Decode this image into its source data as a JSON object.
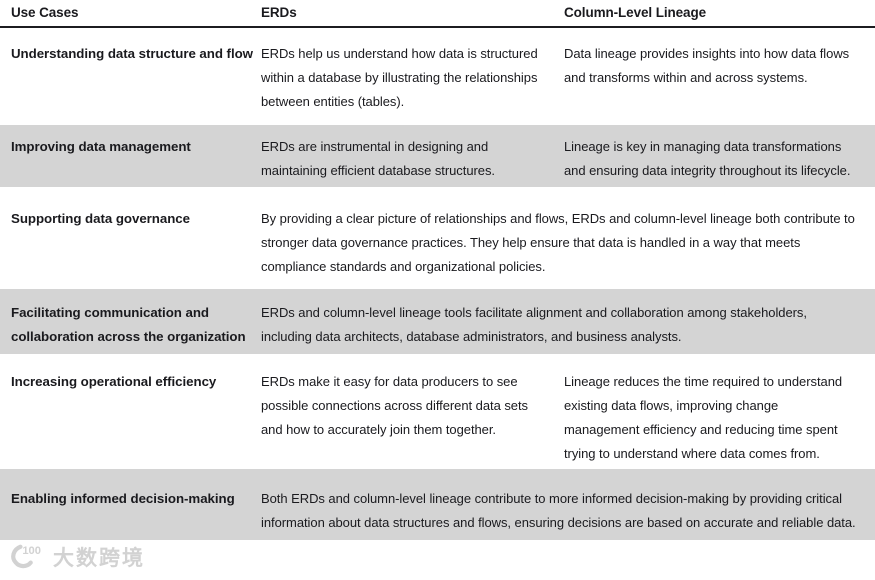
{
  "table": {
    "columns": [
      {
        "label": "Use Cases"
      },
      {
        "label": "ERDs"
      },
      {
        "label": "Column-Level Lineage"
      }
    ],
    "rows": [
      {
        "use_case": "Understanding data structure and flow",
        "erd": "ERDs help us understand how data is structured within a database by illustrating the relationships between entities (tables).",
        "lineage": "Data lineage provides insights into how data flows and transforms within and across systems.",
        "shaded": false,
        "span": false
      },
      {
        "use_case": "Improving data management",
        "erd": "ERDs are instrumental in designing and maintaining efficient database structures.",
        "lineage": "Lineage is key in managing data transformations and ensuring data integrity throughout its lifecycle.",
        "shaded": true,
        "span": false
      },
      {
        "use_case": "Supporting data governance",
        "combined": "By providing a clear picture of relationships and flows, ERDs and column-level lineage both contribute to stronger data governance practices. They help ensure that data is handled in a way that meets compliance standards and organizational policies.",
        "shaded": false,
        "span": true
      },
      {
        "use_case": "Facilitating communication and collaboration across the organization",
        "combined": "ERDs and column-level lineage tools facilitate alignment and collaboration among stakeholders, including data architects, database administrators, and business analysts.",
        "shaded": true,
        "span": true
      },
      {
        "use_case": "Increasing operational efficiency",
        "erd": "ERDs make it easy for data producers to see possible connections across different data sets and how to accurately join them together.",
        "lineage": "Lineage reduces the time required to understand existing data flows, improving change management efficiency and reducing time spent trying to understand where data comes from.",
        "shaded": true,
        "span": false
      },
      {
        "use_case": "Enabling informed decision-making",
        "combined": "Both ERDs and column-level lineage contribute to more informed decision-making by providing critical information about data structures and flows, ensuring decisions are based on accurate and reliable data.",
        "shaded": true,
        "span": true
      }
    ]
  },
  "watermark": {
    "logo_text": "100",
    "brand_text": "大数跨境"
  },
  "colors": {
    "row_shaded": "#d4d4d4",
    "text": "#1a1a1e",
    "header_rule": "#1c1c20",
    "watermark": "#d2d2d2"
  }
}
